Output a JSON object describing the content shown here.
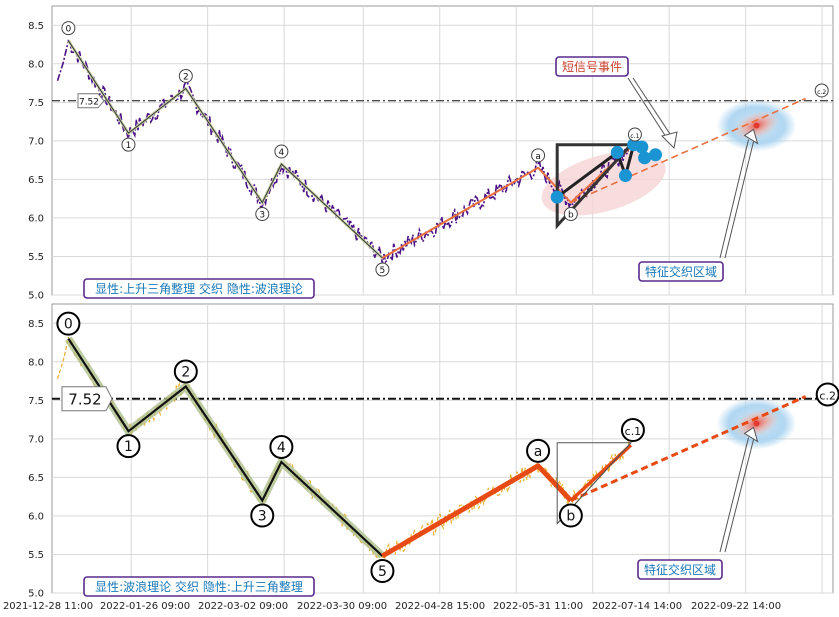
{
  "chart_data": [
    {
      "type": "line",
      "title": "",
      "xlabel": "",
      "ylabel": "",
      "ylim": [
        5.0,
        8.75
      ],
      "yticks": [
        5.0,
        5.5,
        6.0,
        6.5,
        7.0,
        7.5,
        8.0,
        8.5
      ],
      "grid": true,
      "reference_line": {
        "value": 7.52,
        "label": "7.52"
      },
      "wave_points": [
        {
          "label": "0",
          "x": "2022-01-03",
          "y": 8.3
        },
        {
          "label": "1",
          "x": "2022-01-25",
          "y": 7.1
        },
        {
          "label": "2",
          "x": "2022-02-15",
          "y": 7.68
        },
        {
          "label": "3",
          "x": "2022-03-15",
          "y": 6.2
        },
        {
          "label": "4",
          "x": "2022-03-22",
          "y": 6.7
        },
        {
          "label": "5",
          "x": "2022-04-28",
          "y": 5.48
        },
        {
          "label": "a",
          "x": "2022-06-24",
          "y": 6.65
        },
        {
          "label": "b",
          "x": "2022-07-06",
          "y": 6.2
        },
        {
          "label": "c.1",
          "x": "2022-07-28",
          "y": 6.92
        },
        {
          "label": "c.2",
          "x": "2022-09-30",
          "y": 7.55
        }
      ],
      "triangle": {
        "x": [
          "2022-07-01",
          "2022-07-01",
          "2022-07-28",
          "2022-07-01"
        ],
        "y": [
          5.9,
          6.95,
          6.95,
          6.3
        ]
      },
      "signal_markers": [
        {
          "x": "2022-07-01",
          "y": 6.27
        },
        {
          "x": "2022-07-23",
          "y": 6.85
        },
        {
          "x": "2022-07-26",
          "y": 6.55
        },
        {
          "x": "2022-07-29",
          "y": 6.95
        },
        {
          "x": "2022-08-01",
          "y": 6.92
        },
        {
          "x": "2022-08-02",
          "y": 6.78
        },
        {
          "x": "2022-08-06",
          "y": 6.82
        }
      ],
      "annotations": [
        "短信号事件",
        "特征交织区域"
      ],
      "legend_label": "显性:上升三角整理 交织 隐性:波浪理论",
      "colors": {
        "price": "#4b1184",
        "wave": "#2b2b2b",
        "projection": "#e8703e",
        "triangle": "#333333",
        "marker": "#1a94d2",
        "box_border": "#5a2a8e"
      }
    },
    {
      "type": "line",
      "title": "",
      "xlabel": "",
      "ylabel": "",
      "ylim": [
        5.0,
        8.75
      ],
      "yticks": [
        5.0,
        5.5,
        6.0,
        6.5,
        7.0,
        7.5,
        8.0,
        8.5
      ],
      "grid": true,
      "reference_line": {
        "value": 7.52,
        "label": "7.52"
      },
      "x_tick_labels": [
        "2021-12-28 11:00",
        "2022-01-26 09:00",
        "2022-03-02 09:00",
        "2022-03-30 09:00",
        "2022-04-28 15:00",
        "2022-05-31 11:00",
        "2022-07-14 14:00",
        "2022-09-22 14:00"
      ],
      "wave_points": [
        {
          "label": "0",
          "x": "2022-01-03",
          "y": 8.3
        },
        {
          "label": "1",
          "x": "2022-01-25",
          "y": 7.1
        },
        {
          "label": "2",
          "x": "2022-02-15",
          "y": 7.68
        },
        {
          "label": "3",
          "x": "2022-03-15",
          "y": 6.2
        },
        {
          "label": "4",
          "x": "2022-03-22",
          "y": 6.7
        },
        {
          "label": "5",
          "x": "2022-04-28",
          "y": 5.48
        },
        {
          "label": "a",
          "x": "2022-06-24",
          "y": 6.65
        },
        {
          "label": "b",
          "x": "2022-07-06",
          "y": 6.2
        },
        {
          "label": "c.1",
          "x": "2022-07-28",
          "y": 6.92
        },
        {
          "label": "c.2",
          "x": "2022-09-30",
          "y": 7.55
        }
      ],
      "triangle": {
        "x": [
          "2022-07-01",
          "2022-07-01",
          "2022-07-28",
          "2022-07-01"
        ],
        "y": [
          5.9,
          6.95,
          6.95,
          6.3
        ]
      },
      "annotations": [
        "特征交织区域"
      ],
      "legend_label": "显性:波浪理论 交织 隐性:上升三角整理",
      "colors": {
        "price": "#e8b030",
        "wave": "#111111",
        "wave_halo": "#aebf8c",
        "projection": "#e84a14",
        "triangle": "#555555",
        "box_border": "#5a2a8e"
      }
    }
  ]
}
